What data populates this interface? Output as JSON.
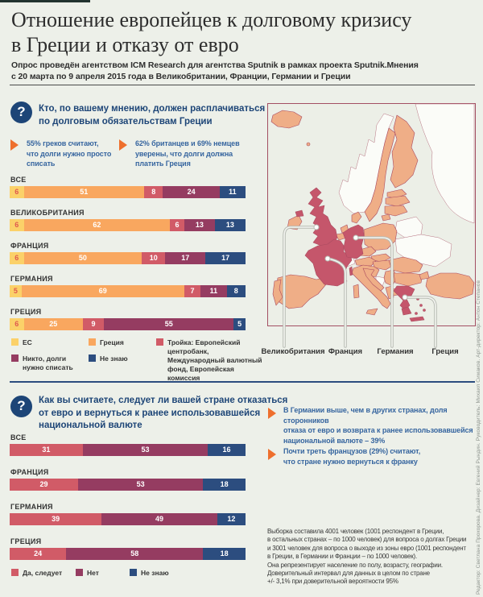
{
  "header": {
    "title": "Отношение европейцев к долговому кризису\nв Греции и отказу от евро",
    "subtitle": "Опрос проведён агентством ICM Research для агентства Sputnik в рамках проекта Sputnik.Мнения\nс 20 марта по 9 апреля 2015 года в Великобритании, Франции, Германии и Греции"
  },
  "colors": {
    "accent_navy": "#1d4577",
    "accent_orange": "#ee6f2d",
    "bar_yellow": "#fbd169",
    "bar_orange": "#f9a75f",
    "bar_rose": "#d15b67",
    "bar_maroon": "#953c61",
    "bar_navy": "#2c4d7f",
    "map_country": "#efae87",
    "map_highlight": "#c5566b",
    "map_border": "#a34f63"
  },
  "question1": {
    "icon": "question-mark",
    "text": "Кто, по вашему мнению, должен расплачиваться\nпо долговым обязательствам Греции",
    "callout1": "55% греков считают,\nчто долги нужно просто\nсписать",
    "callout2": "62% британцев и 69% немцев\nуверены, что долги должна\nплатить Греция"
  },
  "question2": {
    "icon": "question-mark",
    "text": "Как вы считаете, следует ли вашей стране отказаться\nот евро и вернуться к ранее использовавшейся\nнациональной валюте",
    "callout1": "В Германии выше, чем в других странах, доля сторонников\nотказа от евро и возврата к ранее использовавшейся\nнациональной валюте – 39%",
    "callout2": "Почти треть французов (29%) считают,\nчто стране нужно вернуться к франку"
  },
  "map": {
    "labels": [
      "Великобритания",
      "Франция",
      "Германия",
      "Греция"
    ],
    "highlighted_countries": [
      "Великобритания",
      "Франция",
      "Германия",
      "Греция"
    ]
  },
  "chart_data": [
    {
      "type": "bar",
      "stacked": true,
      "orientation": "horizontal",
      "unit": "%",
      "xlim": [
        0,
        100
      ],
      "title": "Кто, по вашему мнению, должен расплачиваться по долговым обязательствам Греции",
      "categories": [
        "ВСЕ",
        "ВЕЛИКОБРИТАНИЯ",
        "ФРАНЦИЯ",
        "ГЕРМАНИЯ",
        "ГРЕЦИЯ"
      ],
      "series": [
        {
          "name": "ЕС",
          "color": "#fbd169",
          "value_color": "#df5a4e",
          "values": [
            6,
            6,
            6,
            5,
            6
          ]
        },
        {
          "name": "Греция",
          "color": "#f9a75f",
          "value_color": "#ffffff",
          "values": [
            51,
            62,
            50,
            69,
            25
          ]
        },
        {
          "name": "Тройка: Европейский центробанк, Международный валютный фонд, Европейская комиссия",
          "color": "#d15b67",
          "value_color": "#ffffff",
          "values": [
            8,
            6,
            10,
            7,
            9
          ]
        },
        {
          "name": "Никто, долги нужно списать",
          "color": "#953c61",
          "value_color": "#ffffff",
          "values": [
            24,
            13,
            17,
            11,
            55
          ]
        },
        {
          "name": "Не знаю",
          "color": "#2c4d7f",
          "value_color": "#ffffff",
          "values": [
            11,
            13,
            17,
            8,
            5
          ]
        }
      ],
      "legend_position": "bottom"
    },
    {
      "type": "bar",
      "stacked": true,
      "orientation": "horizontal",
      "unit": "%",
      "xlim": [
        0,
        100
      ],
      "title": "Как вы считаете, следует ли вашей стране отказаться от евро и вернуться к ранее использовавшейся национальной валюте",
      "categories": [
        "ВСЕ",
        "ФРАНЦИЯ",
        "ГЕРМАНИЯ",
        "ГРЕЦИЯ"
      ],
      "series": [
        {
          "name": "Да, следует",
          "color": "#d15b67",
          "value_color": "#ffffff",
          "values": [
            31,
            29,
            39,
            24
          ]
        },
        {
          "name": "Нет",
          "color": "#953c61",
          "value_color": "#ffffff",
          "values": [
            53,
            53,
            49,
            58
          ]
        },
        {
          "name": "Не знаю",
          "color": "#2c4d7f",
          "value_color": "#ffffff",
          "values": [
            16,
            18,
            12,
            18
          ]
        }
      ],
      "legend_position": "bottom"
    }
  ],
  "footnote": "Выборка составила 4001 человек (1001 респондент в Греции,\nв остальных странах – по 1000 человек) для вопроса о долгах Греции\nи 3001 человек для вопроса о выходе из зоны евро (1001 респондент\nв Греции, в Германии и Франции – по 1000 человек).\nОна репрезентирует население по полу, возрасту, географии.\nДоверительный интервал для данных в целом по стране\n+/- 3,1% при доверительной вероятности 95%",
  "credits": "Редактор: Светлана Прохорова. Дизайнер: Евгений Рындин. Руководитель: Михаил Симаков. Арт-директор: Антон Степанов"
}
